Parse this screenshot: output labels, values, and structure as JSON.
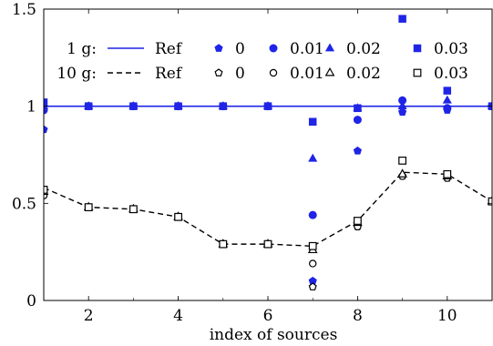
{
  "chart_data": {
    "type": "line",
    "title": "",
    "xlabel": "index of sources",
    "ylabel": "",
    "xlim": [
      1,
      11
    ],
    "ylim": [
      0,
      1.5
    ],
    "x_ticks": [
      "2",
      "4",
      "6",
      "8",
      "10"
    ],
    "y_ticks": [
      "0",
      "0.5",
      "1",
      "1.5"
    ],
    "grid": false,
    "legend": {
      "placement": "top",
      "rows": [
        {
          "group": "1 g:",
          "ref_label": "Ref",
          "levels": [
            "0",
            "0.01",
            "0.02",
            "0.03"
          ]
        },
        {
          "group": "10 g:",
          "ref_label": "Ref",
          "levels": [
            "0",
            "0.01",
            "0.02",
            "0.03"
          ]
        }
      ]
    },
    "colors": {
      "g1": "#1f24e6",
      "g10": "#000000"
    },
    "x": [
      1,
      2,
      3,
      4,
      5,
      6,
      7,
      8,
      9,
      10,
      11
    ],
    "series": [
      {
        "name": "Ref",
        "group": "1 g",
        "style": "line",
        "values": [
          1.0,
          1.0,
          1.0,
          1.0,
          1.0,
          1.0,
          1.0,
          1.0,
          1.0,
          1.0,
          1.0
        ]
      },
      {
        "name": "0",
        "group": "1 g",
        "marker": "pentagon",
        "values": [
          0.88,
          1.0,
          1.0,
          1.0,
          1.0,
          1.0,
          0.1,
          0.77,
          0.97,
          0.98,
          1.0
        ]
      },
      {
        "name": "0.01",
        "group": "1 g",
        "marker": "circle",
        "values": [
          0.98,
          1.0,
          1.0,
          1.0,
          1.0,
          1.0,
          0.44,
          0.93,
          1.03,
          0.99,
          1.0
        ]
      },
      {
        "name": "0.02",
        "group": "1 g",
        "marker": "triangle",
        "values": [
          1.0,
          1.0,
          1.0,
          1.0,
          1.0,
          1.0,
          0.73,
          0.99,
          1.0,
          1.03,
          1.0
        ]
      },
      {
        "name": "0.03",
        "group": "1 g",
        "marker": "square",
        "values": [
          1.02,
          1.0,
          1.0,
          1.0,
          1.0,
          1.0,
          0.92,
          0.99,
          1.45,
          1.08,
          1.0
        ]
      },
      {
        "name": "Ref",
        "group": "10 g",
        "style": "dashed",
        "values": [
          0.58,
          0.48,
          0.47,
          0.43,
          0.29,
          0.29,
          0.28,
          0.41,
          0.66,
          0.65,
          0.51
        ]
      },
      {
        "name": "0",
        "group": "10 g",
        "marker": "pentagon",
        "values": [
          0.55,
          0.48,
          0.47,
          0.43,
          0.29,
          0.29,
          0.07,
          0.38,
          0.64,
          0.63,
          0.51
        ]
      },
      {
        "name": "0.01",
        "group": "10 g",
        "marker": "circle",
        "values": [
          0.54,
          0.48,
          0.47,
          0.43,
          0.29,
          0.29,
          0.19,
          0.38,
          0.64,
          0.63,
          0.51
        ]
      },
      {
        "name": "0.02",
        "group": "10 g",
        "marker": "triangle",
        "values": [
          0.56,
          0.48,
          0.47,
          0.43,
          0.29,
          0.29,
          0.26,
          0.4,
          0.65,
          0.64,
          0.51
        ]
      },
      {
        "name": "0.03",
        "group": "10 g",
        "marker": "square",
        "values": [
          0.57,
          0.48,
          0.47,
          0.43,
          0.29,
          0.29,
          0.28,
          0.41,
          0.72,
          0.65,
          0.51
        ]
      }
    ]
  }
}
